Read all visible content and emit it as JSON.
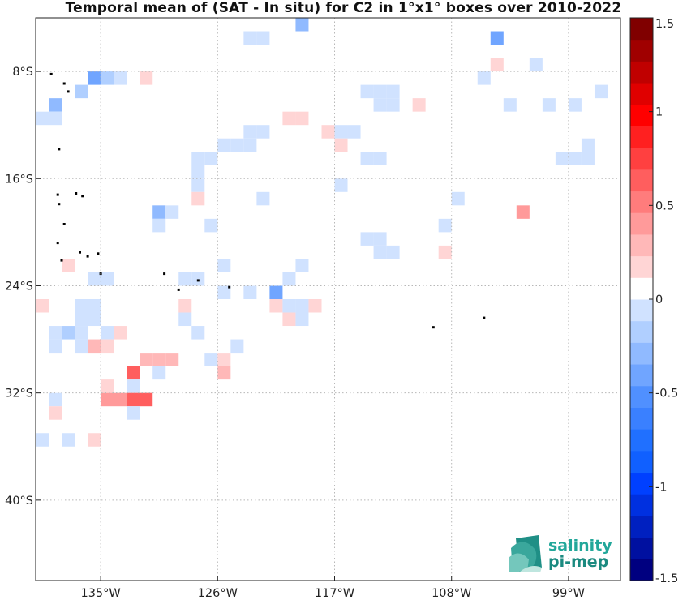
{
  "title": "Temporal mean of (SAT - In situ) for C2 in 1°x1° boxes over 2010-2022",
  "map": {
    "lon_range": [
      -140,
      -95
    ],
    "lat_range": [
      -46,
      -4
    ],
    "lon_ticks": [
      {
        "value": -135,
        "label": "135°W"
      },
      {
        "value": -126,
        "label": "126°W"
      },
      {
        "value": -117,
        "label": "117°W"
      },
      {
        "value": -108,
        "label": "108°W"
      },
      {
        "value": -99,
        "label": "99°W"
      }
    ],
    "lat_ticks": [
      {
        "value": -8,
        "label": "8°S"
      },
      {
        "value": -16,
        "label": "16°S"
      },
      {
        "value": -24,
        "label": "24°S"
      },
      {
        "value": -32,
        "label": "32°S"
      },
      {
        "value": -40,
        "label": "40°S"
      }
    ],
    "grid": true,
    "land_color": "#000000"
  },
  "colorbar": {
    "min": -1.5,
    "max": 1.5,
    "ticks": [
      {
        "value": 1.5,
        "label": "1.5"
      },
      {
        "value": 1,
        "label": "1"
      },
      {
        "value": 0.5,
        "label": "0.5"
      },
      {
        "value": 0,
        "label": "0"
      },
      {
        "value": -0.5,
        "label": "-0.5"
      },
      {
        "value": -1,
        "label": "-1"
      },
      {
        "value": -1.5,
        "label": "-1.5"
      }
    ],
    "colors": [
      "#000080",
      "#0010a0",
      "#0020c0",
      "#0030e0",
      "#0040ff",
      "#1060ff",
      "#2070ff",
      "#3a80ff",
      "#5090ff",
      "#70a5ff",
      "#90baff",
      "#b0cfff",
      "#d0e2ff",
      "#ffffff",
      "#ffd5d5",
      "#ffb8b8",
      "#ff9a9a",
      "#ff7c7c",
      "#ff5e5e",
      "#ff4040",
      "#ff2020",
      "#ff0000",
      "#e00000",
      "#c00000",
      "#a00000",
      "#800000"
    ]
  },
  "logo": {
    "line1": "salinity",
    "line2": "pi-mep"
  },
  "chart_data": {
    "type": "heatmap",
    "title": "Temporal mean of (SAT - In situ) for C2 in 1°x1° boxes over 2010-2022",
    "units_note": "value = temporal mean difference (SAT - In situ); lon/lat = box center in degrees",
    "clim": [
      -1.5,
      1.5
    ],
    "cells": [
      [
        -123.5,
        -5.5,
        -0.05
      ],
      [
        -122.5,
        -5.5,
        -0.05
      ],
      [
        -119.5,
        -4.5,
        -0.3
      ],
      [
        -116.5,
        -4.5,
        0.1
      ],
      [
        -104.5,
        -5.5,
        -0.4
      ],
      [
        -102.5,
        -4.5,
        0.1
      ],
      [
        -102.5,
        -6.5,
        0.1
      ],
      [
        -104.5,
        -7.5,
        0.15
      ],
      [
        -101.5,
        -7.5,
        -0.05
      ],
      [
        -98.5,
        -4.5,
        0.1
      ],
      [
        -135.5,
        -8.5,
        -0.35
      ],
      [
        -134.5,
        -8.5,
        -0.2
      ],
      [
        -133.5,
        -8.5,
        -0.05
      ],
      [
        -131.5,
        -8.5,
        0.15
      ],
      [
        -136.5,
        -9.5,
        -0.2
      ],
      [
        -106.5,
        -8.5,
        0.1
      ],
      [
        -105.5,
        -8.5,
        -0.05
      ],
      [
        -96.5,
        -8.5,
        0.1
      ],
      [
        -114.5,
        -9.5,
        -0.05
      ],
      [
        -113.5,
        -9.5,
        -0.05
      ],
      [
        -112.5,
        -9.5,
        -0.05
      ],
      [
        -113.5,
        -10.5,
        -0.05
      ],
      [
        -112.5,
        -10.5,
        -0.05
      ],
      [
        -110.5,
        -10.5,
        0.15
      ],
      [
        -96.5,
        -9.5,
        -0.05
      ],
      [
        -138.5,
        -10.5,
        -0.3
      ],
      [
        -139.5,
        -11.5,
        -0.05
      ],
      [
        -138.5,
        -11.5,
        -0.05
      ],
      [
        -103.5,
        -10.5,
        -0.05
      ],
      [
        -100.5,
        -10.5,
        -0.05
      ],
      [
        -98.5,
        -10.5,
        -0.05
      ],
      [
        -120.5,
        -11.5,
        0.15
      ],
      [
        -119.5,
        -11.5,
        0.15
      ],
      [
        -117.5,
        -12.5,
        0.15
      ],
      [
        -116.5,
        -12.5,
        -0.05
      ],
      [
        -115.5,
        -12.5,
        -0.05
      ],
      [
        -114.5,
        -11.5,
        0.1
      ],
      [
        -134.5,
        -12.5,
        0.1
      ],
      [
        -123.5,
        -12.5,
        -0.05
      ],
      [
        -122.5,
        -12.5,
        -0.05
      ],
      [
        -116.5,
        -13.5,
        0.15
      ],
      [
        -125.5,
        -13.5,
        -0.05
      ],
      [
        -124.5,
        -13.5,
        -0.05
      ],
      [
        -123.5,
        -13.5,
        -0.05
      ],
      [
        -97.5,
        -13.5,
        -0.05
      ],
      [
        -114.5,
        -14.5,
        -0.05
      ],
      [
        -113.5,
        -14.5,
        -0.05
      ],
      [
        -99.5,
        -14.5,
        -0.05
      ],
      [
        -98.5,
        -14.5,
        -0.05
      ],
      [
        -97.5,
        -14.5,
        -0.05
      ],
      [
        -127.5,
        -14.5,
        -0.05
      ],
      [
        -126.5,
        -14.5,
        -0.05
      ],
      [
        -127.5,
        -15.5,
        -0.05
      ],
      [
        -116.5,
        -16.5,
        -0.05
      ],
      [
        -127.5,
        -16.5,
        -0.1
      ],
      [
        -134.5,
        -17.5,
        0.1
      ],
      [
        -134.5,
        -18.5,
        0.1
      ],
      [
        -134.5,
        -19.5,
        0.1
      ],
      [
        -127.5,
        -17.5,
        0.15
      ],
      [
        -122.5,
        -17.5,
        -0.05
      ],
      [
        -107.5,
        -17.5,
        -0.1
      ],
      [
        -102.5,
        -18.5,
        0.4
      ],
      [
        -130.5,
        -18.5,
        -0.3
      ],
      [
        -129.5,
        -18.5,
        -0.05
      ],
      [
        -126.5,
        -19.5,
        -0.05
      ],
      [
        -108.5,
        -19.5,
        -0.05
      ],
      [
        -107.5,
        -19.5,
        0.1
      ],
      [
        -106.5,
        -19.5,
        0.1
      ],
      [
        -130.5,
        -19.5,
        -0.05
      ],
      [
        -114.5,
        -20.5,
        -0.05
      ],
      [
        -113.5,
        -20.5,
        -0.05
      ],
      [
        -113.5,
        -21.5,
        -0.05
      ],
      [
        -112.5,
        -21.5,
        -0.05
      ],
      [
        -108.5,
        -21.5,
        0.15
      ],
      [
        -137.5,
        -22.5,
        0.15
      ],
      [
        -125.5,
        -22.5,
        -0.05
      ],
      [
        -119.5,
        -22.5,
        -0.05
      ],
      [
        -120.5,
        -23.5,
        -0.05
      ],
      [
        -135.5,
        -23.5,
        -0.05
      ],
      [
        -134.5,
        -23.5,
        -0.05
      ],
      [
        -128.5,
        -23.5,
        -0.05
      ],
      [
        -127.5,
        -23.5,
        -0.05
      ],
      [
        -125.5,
        -24.5,
        -0.05
      ],
      [
        -123.5,
        -24.5,
        -0.05
      ],
      [
        -121.5,
        -24.5,
        -0.35
      ],
      [
        -139.5,
        -25.5,
        0.15
      ],
      [
        -136.5,
        -25.5,
        -0.05
      ],
      [
        -135.5,
        -25.5,
        -0.05
      ],
      [
        -128.5,
        -25.5,
        0.15
      ],
      [
        -121.5,
        -25.5,
        0.15
      ],
      [
        -120.5,
        -25.5,
        -0.05
      ],
      [
        -119.5,
        -25.5,
        -0.05
      ],
      [
        -118.5,
        -25.5,
        0.15
      ],
      [
        -136.5,
        -26.5,
        -0.05
      ],
      [
        -135.5,
        -26.5,
        -0.05
      ],
      [
        -128.5,
        -26.5,
        -0.05
      ],
      [
        -120.5,
        -26.5,
        0.15
      ],
      [
        -119.5,
        -26.5,
        -0.05
      ],
      [
        -138.5,
        -27.5,
        -0.05
      ],
      [
        -137.5,
        -27.5,
        -0.2
      ],
      [
        -136.5,
        -27.5,
        -0.05
      ],
      [
        -134.5,
        -27.5,
        -0.05
      ],
      [
        -133.5,
        -27.5,
        0.15
      ],
      [
        -127.5,
        -27.5,
        -0.05
      ],
      [
        -138.5,
        -28.5,
        -0.05
      ],
      [
        -136.5,
        -28.5,
        -0.05
      ],
      [
        -135.5,
        -28.5,
        0.3
      ],
      [
        -134.5,
        -28.5,
        0.15
      ],
      [
        -124.5,
        -28.5,
        -0.05
      ],
      [
        -131.5,
        -29.5,
        0.3
      ],
      [
        -130.5,
        -29.5,
        0.3
      ],
      [
        -129.5,
        -29.5,
        0.3
      ],
      [
        -126.5,
        -29.5,
        -0.05
      ],
      [
        -125.5,
        -29.5,
        0.15
      ],
      [
        -132.5,
        -30.5,
        0.6
      ],
      [
        -130.5,
        -30.5,
        -0.05
      ],
      [
        -125.5,
        -30.5,
        0.3
      ],
      [
        -134.5,
        -31.5,
        0.15
      ],
      [
        -132.5,
        -31.5,
        -0.05
      ],
      [
        -138.5,
        -32.5,
        -0.05
      ],
      [
        -134.5,
        -32.5,
        0.45
      ],
      [
        -133.5,
        -32.5,
        0.45
      ],
      [
        -132.5,
        -32.5,
        0.6
      ],
      [
        -131.5,
        -32.5,
        0.6
      ],
      [
        -138.5,
        -33.5,
        0.15
      ],
      [
        -132.5,
        -33.5,
        -0.05
      ],
      [
        -139.5,
        -35.5,
        -0.05
      ],
      [
        -137.5,
        -35.5,
        -0.05
      ],
      [
        -135.5,
        -35.5,
        0.15
      ]
    ],
    "land_points": [
      [
        -138.8,
        -8.2
      ],
      [
        -137.8,
        -8.9
      ],
      [
        -137.5,
        -9.5
      ],
      [
        -138.2,
        -13.8
      ],
      [
        -138.3,
        -17.2
      ],
      [
        -136.9,
        -17.1
      ],
      [
        -136.4,
        -17.3
      ],
      [
        -138.2,
        -17.9
      ],
      [
        -137.8,
        -19.4
      ],
      [
        -138.3,
        -20.8
      ],
      [
        -136.6,
        -21.5
      ],
      [
        -136.0,
        -21.8
      ],
      [
        -135.2,
        -21.6
      ],
      [
        -138.0,
        -22.1
      ],
      [
        -135.0,
        -23.1
      ],
      [
        -130.1,
        -23.1
      ],
      [
        -129.0,
        -24.3
      ],
      [
        -127.5,
        -23.6
      ],
      [
        -125.1,
        -24.1
      ],
      [
        -109.4,
        -27.1
      ],
      [
        -105.5,
        -26.4
      ]
    ]
  }
}
